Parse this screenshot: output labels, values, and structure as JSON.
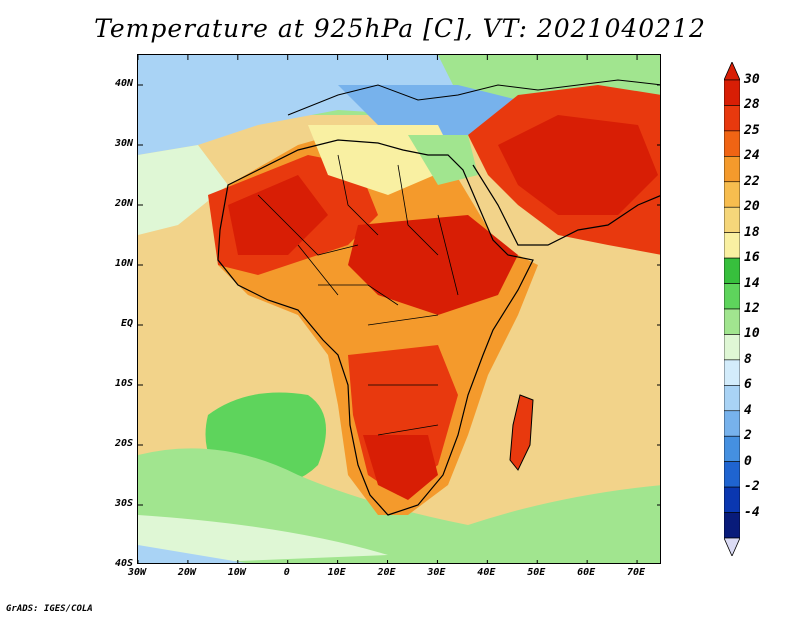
{
  "title": "Temperature at 925hPa [C], VT: 2021040212",
  "credit": "GrADS: IGES/COLA",
  "map": {
    "lat_labels": [
      "40N",
      "30N",
      "20N",
      "10N",
      "EQ",
      "10S",
      "20S",
      "30S",
      "40S"
    ],
    "lat_values": [
      40,
      30,
      20,
      10,
      0,
      -10,
      -20,
      -30,
      -40
    ],
    "lon_labels": [
      "30W",
      "20W",
      "10W",
      "0",
      "10E",
      "20E",
      "30E",
      "40E",
      "50E",
      "60E",
      "70E"
    ],
    "lon_values": [
      -30,
      -20,
      -10,
      0,
      10,
      20,
      30,
      40,
      50,
      60,
      70
    ],
    "lon_range": [
      -30,
      75
    ],
    "lat_range": [
      -40,
      45
    ],
    "ocean_fill_color": "#f2d38a"
  },
  "colorbar": {
    "labels": [
      "30",
      "28",
      "25",
      "24",
      "22",
      "20",
      "18",
      "16",
      "14",
      "12",
      "10",
      "8",
      "6",
      "4",
      "2",
      "0",
      "-2",
      "-4"
    ],
    "colors": [
      "#d81e05",
      "#e8390e",
      "#f06414",
      "#f49a2c",
      "#f7bd4f",
      "#f5d67a",
      "#f9f0a2",
      "#37bf3d",
      "#5ed45c",
      "#a1e58f",
      "#dff7d5",
      "#d3ecfb",
      "#a9d3f5",
      "#77b2ec",
      "#4590e0",
      "#1f64d0",
      "#0a37b0",
      "#081b7a"
    ],
    "under_color": "#dcdcf5",
    "over_color": "#d81e05"
  }
}
